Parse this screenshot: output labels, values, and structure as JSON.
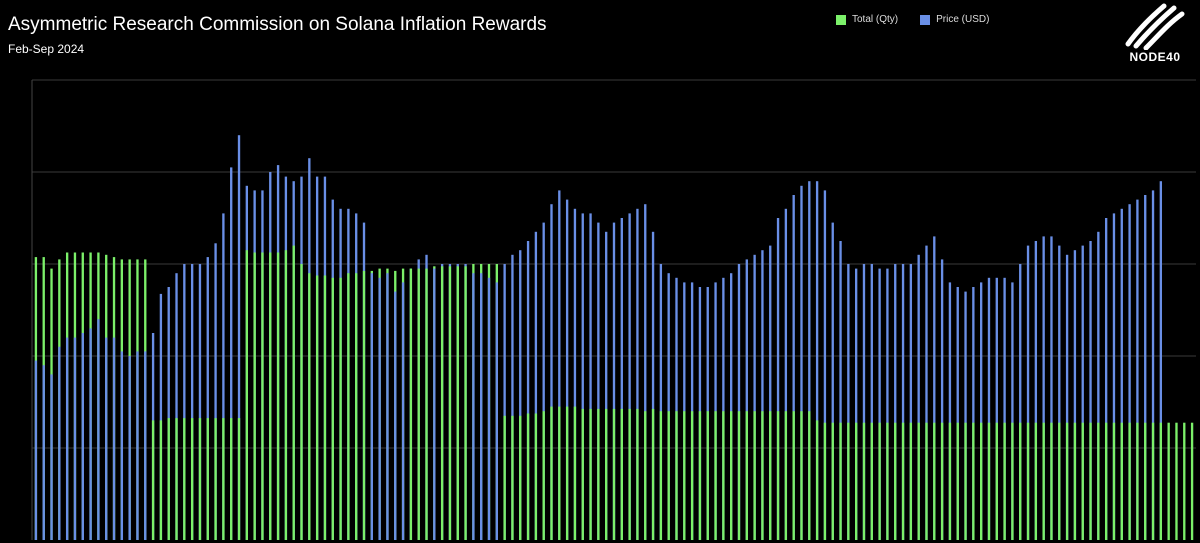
{
  "header": {
    "title": "Asymmetric Research Commission on Solana Inflation Rewards",
    "subtitle": "Feb-Sep 2024"
  },
  "logo": {
    "text": "NODE40",
    "icon": "node40-wave-icon"
  },
  "colors": {
    "qty": "#7CF06A",
    "price": "#6A8FE6",
    "grid": "#3a3a3a",
    "background": "#000000"
  },
  "chart_data": {
    "type": "bar",
    "grid": true,
    "legend_position": "top-right",
    "series": [
      {
        "name": "Total (Qty)",
        "values": [
          0.615,
          0.615,
          0.59,
          0.61,
          0.625,
          0.625,
          0.625,
          0.625,
          0.625,
          0.62,
          0.615,
          0.61,
          0.61,
          0.61,
          0.61,
          0.26,
          0.26,
          0.265,
          0.265,
          0.265,
          0.265,
          0.265,
          0.265,
          0.265,
          0.265,
          0.265,
          0.265,
          0.63,
          0.625,
          0.625,
          0.625,
          0.625,
          0.63,
          0.64,
          0.6,
          0.58,
          0.575,
          0.575,
          0.57,
          0.57,
          0.58,
          0.58,
          0.585,
          0.585,
          0.59,
          0.59,
          0.585,
          0.59,
          0.59,
          0.59,
          0.59,
          0.595,
          0.595,
          0.595,
          0.595,
          0.595,
          0.6,
          0.6,
          0.6,
          0.6,
          0.27,
          0.27,
          0.27,
          0.275,
          0.275,
          0.28,
          0.29,
          0.29,
          0.29,
          0.29,
          0.285,
          0.285,
          0.285,
          0.285,
          0.285,
          0.285,
          0.285,
          0.285,
          0.28,
          0.285,
          0.28,
          0.28,
          0.28,
          0.28,
          0.28,
          0.28,
          0.28,
          0.28,
          0.28,
          0.28,
          0.28,
          0.28,
          0.28,
          0.28,
          0.28,
          0.28,
          0.28,
          0.28,
          0.28,
          0.28,
          0.26,
          0.255,
          0.255,
          0.255,
          0.255,
          0.255,
          0.255,
          0.255,
          0.255,
          0.255,
          0.255,
          0.255,
          0.255,
          0.255,
          0.255,
          0.255,
          0.255,
          0.255,
          0.255,
          0.255,
          0.255,
          0.255,
          0.255,
          0.255,
          0.255,
          0.255,
          0.255,
          0.255,
          0.255,
          0.255,
          0.255,
          0.255,
          0.255,
          0.255,
          0.255,
          0.255,
          0.255,
          0.255,
          0.255,
          0.255,
          0.255,
          0.255,
          0.255,
          0.255,
          0.255,
          0.255,
          0.255,
          0.255,
          0.255
        ]
      },
      {
        "name": "Price (USD)",
        "values": [
          0.39,
          0.38,
          0.36,
          0.42,
          0.44,
          0.44,
          0.45,
          0.46,
          0.48,
          0.44,
          0.44,
          0.41,
          0.4,
          0.41,
          0.41,
          0.45,
          0.535,
          0.55,
          0.58,
          0.6,
          0.6,
          0.6,
          0.615,
          0.645,
          0.71,
          0.81,
          0.88,
          0.77,
          0.76,
          0.76,
          0.8,
          0.815,
          0.79,
          0.78,
          0.79,
          0.83,
          0.79,
          0.79,
          0.74,
          0.72,
          0.72,
          0.71,
          0.69,
          0.58,
          0.57,
          0.58,
          0.54,
          0.56,
          0.59,
          0.61,
          0.62,
          0.59,
          0.6,
          0.6,
          0.6,
          0.6,
          0.58,
          0.58,
          0.57,
          0.56,
          0.6,
          0.62,
          0.63,
          0.65,
          0.67,
          0.69,
          0.73,
          0.76,
          0.74,
          0.72,
          0.71,
          0.71,
          0.69,
          0.67,
          0.69,
          0.7,
          0.71,
          0.72,
          0.73,
          0.67,
          0.6,
          0.58,
          0.57,
          0.56,
          0.56,
          0.55,
          0.55,
          0.56,
          0.57,
          0.58,
          0.6,
          0.61,
          0.62,
          0.63,
          0.64,
          0.7,
          0.72,
          0.75,
          0.77,
          0.78,
          0.78,
          0.76,
          0.69,
          0.65,
          0.6,
          0.59,
          0.6,
          0.6,
          0.59,
          0.59,
          0.6,
          0.6,
          0.6,
          0.62,
          0.64,
          0.66,
          0.61,
          0.56,
          0.55,
          0.54,
          0.55,
          0.56,
          0.57,
          0.57,
          0.57,
          0.56,
          0.6,
          0.64,
          0.65,
          0.66,
          0.66,
          0.64,
          0.62,
          0.63,
          0.64,
          0.65,
          0.67,
          0.7,
          0.71,
          0.72,
          0.73,
          0.74,
          0.75,
          0.76,
          0.78
        ]
      }
    ]
  }
}
